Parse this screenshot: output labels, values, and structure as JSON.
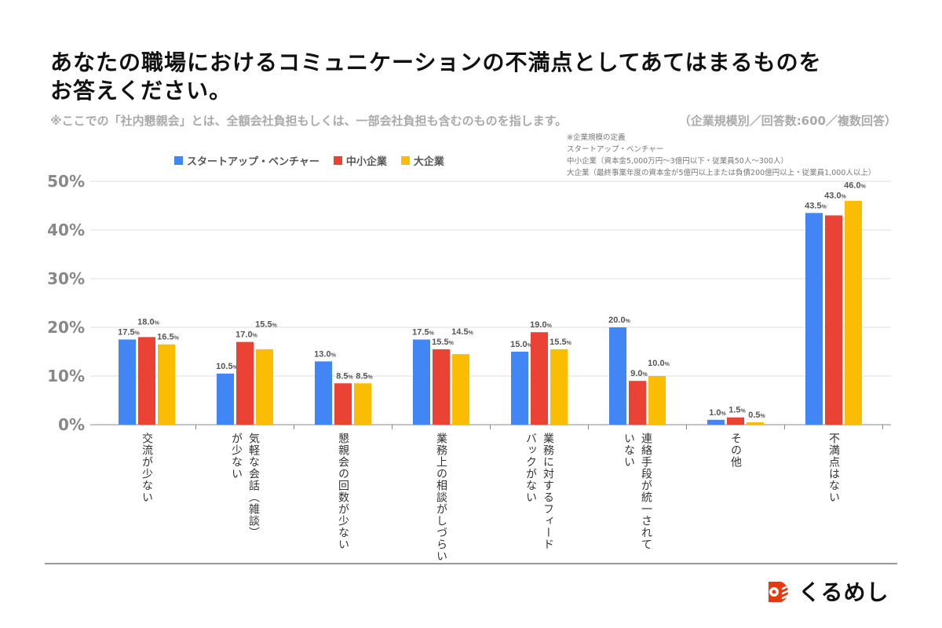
{
  "title_line1": "あなたの職場におけるコミュニケーションの不満点としてあてはまるものを",
  "title_line2": "お答えください。",
  "subtitle": "※ここでの「社内懇親会」とは、全額会社負担もしくは、一部会社負担も含むのものを指します。",
  "meta": "（企業規模別／回答数:600／複数回答）",
  "definitions": [
    "※企業規模の定義",
    "スタートアップ・ベンチャー",
    "中小企業（資本金5,000万円〜3億円以下・従業員50人〜300人）",
    "大企業（最終事業年度の資本金が5億円以上または負債200億円以上・従業員1,000人以上）"
  ],
  "logo_text": "くるめし",
  "chart_data": {
    "type": "bar",
    "categories": [
      "交流が少ない",
      "気軽な会話（雑談）\nが少ない",
      "懇親会の回数が少ない",
      "業務上の相談がしづらい",
      "業務に対するフィード\nバックがない",
      "連絡手段が統一されて\nいない",
      "その他",
      "不満点はない"
    ],
    "series": [
      {
        "name": "スタートアップ・ベンチャー",
        "color": "#4285F4",
        "values": [
          17.5,
          10.5,
          13.0,
          17.5,
          15.0,
          20.0,
          1.0,
          43.5
        ]
      },
      {
        "name": "中小企業",
        "color": "#EA4335",
        "values": [
          18.0,
          17.0,
          8.5,
          15.5,
          19.0,
          9.0,
          1.5,
          43.0
        ]
      },
      {
        "name": "大企業",
        "color": "#FBBC04",
        "values": [
          16.5,
          15.5,
          8.5,
          14.5,
          15.5,
          10.0,
          0.5,
          46.0
        ]
      }
    ],
    "yticks": [
      "0%",
      "10%",
      "20%",
      "30%",
      "40%",
      "50%"
    ],
    "ylim": [
      0,
      50
    ],
    "grid": true,
    "legend": "top-left",
    "value_suffix": "%"
  }
}
